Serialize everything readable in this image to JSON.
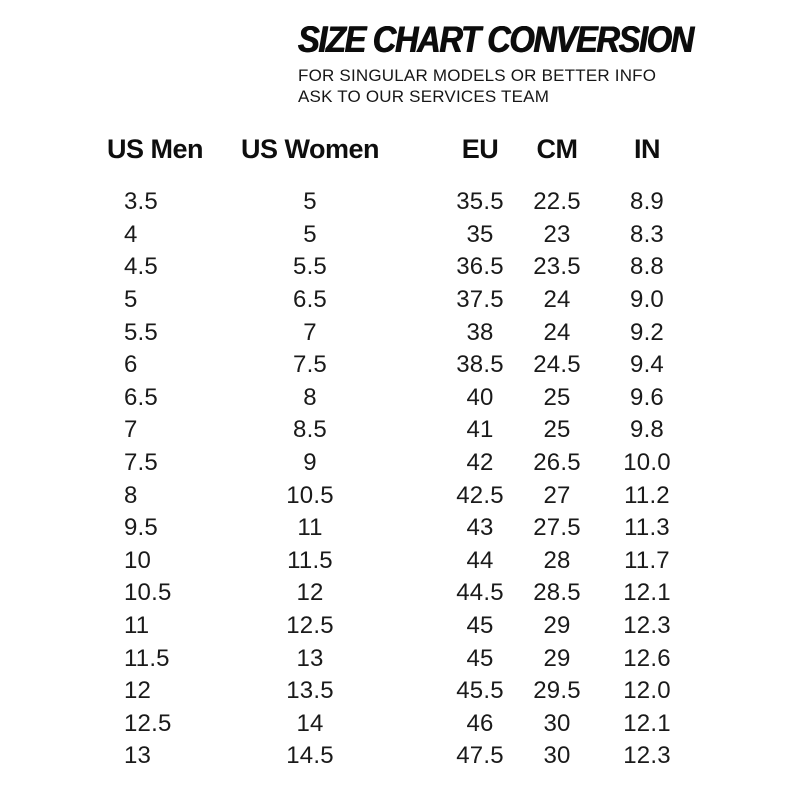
{
  "page": {
    "title": "SIZE CHART CONVERSION",
    "subtitle_lines": [
      "FOR SINGULAR MODELS OR BETTER INFO",
      "ASK TO OUR SERVICES TEAM"
    ]
  },
  "chart_data": {
    "type": "table",
    "title": "SIZE CHART CONVERSION",
    "columns": [
      "US Men",
      "US Women",
      "EU",
      "CM",
      "IN"
    ],
    "rows": [
      [
        "3.5",
        "5",
        "35.5",
        "22.5",
        "8.9"
      ],
      [
        "4",
        "5",
        "35",
        "23",
        "8.3"
      ],
      [
        "4.5",
        "5.5",
        "36.5",
        "23.5",
        "8.8"
      ],
      [
        "5",
        "6.5",
        "37.5",
        "24",
        "9.0"
      ],
      [
        "5.5",
        "7",
        "38",
        "24",
        "9.2"
      ],
      [
        "6",
        "7.5",
        "38.5",
        "24.5",
        "9.4"
      ],
      [
        "6.5",
        "8",
        "40",
        "25",
        "9.6"
      ],
      [
        "7",
        "8.5",
        "41",
        "25",
        "9.8"
      ],
      [
        "7.5",
        "9",
        "42",
        "26.5",
        "10.0"
      ],
      [
        "8",
        "10.5",
        "42.5",
        "27",
        "11.2"
      ],
      [
        "9.5",
        "11",
        "43",
        "27.5",
        "11.3"
      ],
      [
        "10",
        "11.5",
        "44",
        "28",
        "11.7"
      ],
      [
        "10.5",
        "12",
        "44.5",
        "28.5",
        "12.1"
      ],
      [
        "11",
        "12.5",
        "45",
        "29",
        "12.3"
      ],
      [
        "11.5",
        "13",
        "45",
        "29",
        "12.6"
      ],
      [
        "12",
        "13.5",
        "45.5",
        "29.5",
        "12.0"
      ],
      [
        "12.5",
        "14",
        "46",
        "30",
        "12.1"
      ],
      [
        "13",
        "14.5",
        "47.5",
        "30",
        "12.3"
      ]
    ]
  },
  "colors": {
    "background": "#ffffff",
    "title_text": "#0c0c0c",
    "header_text": "#0e0e0e",
    "value_text": "#1a1a1a"
  }
}
